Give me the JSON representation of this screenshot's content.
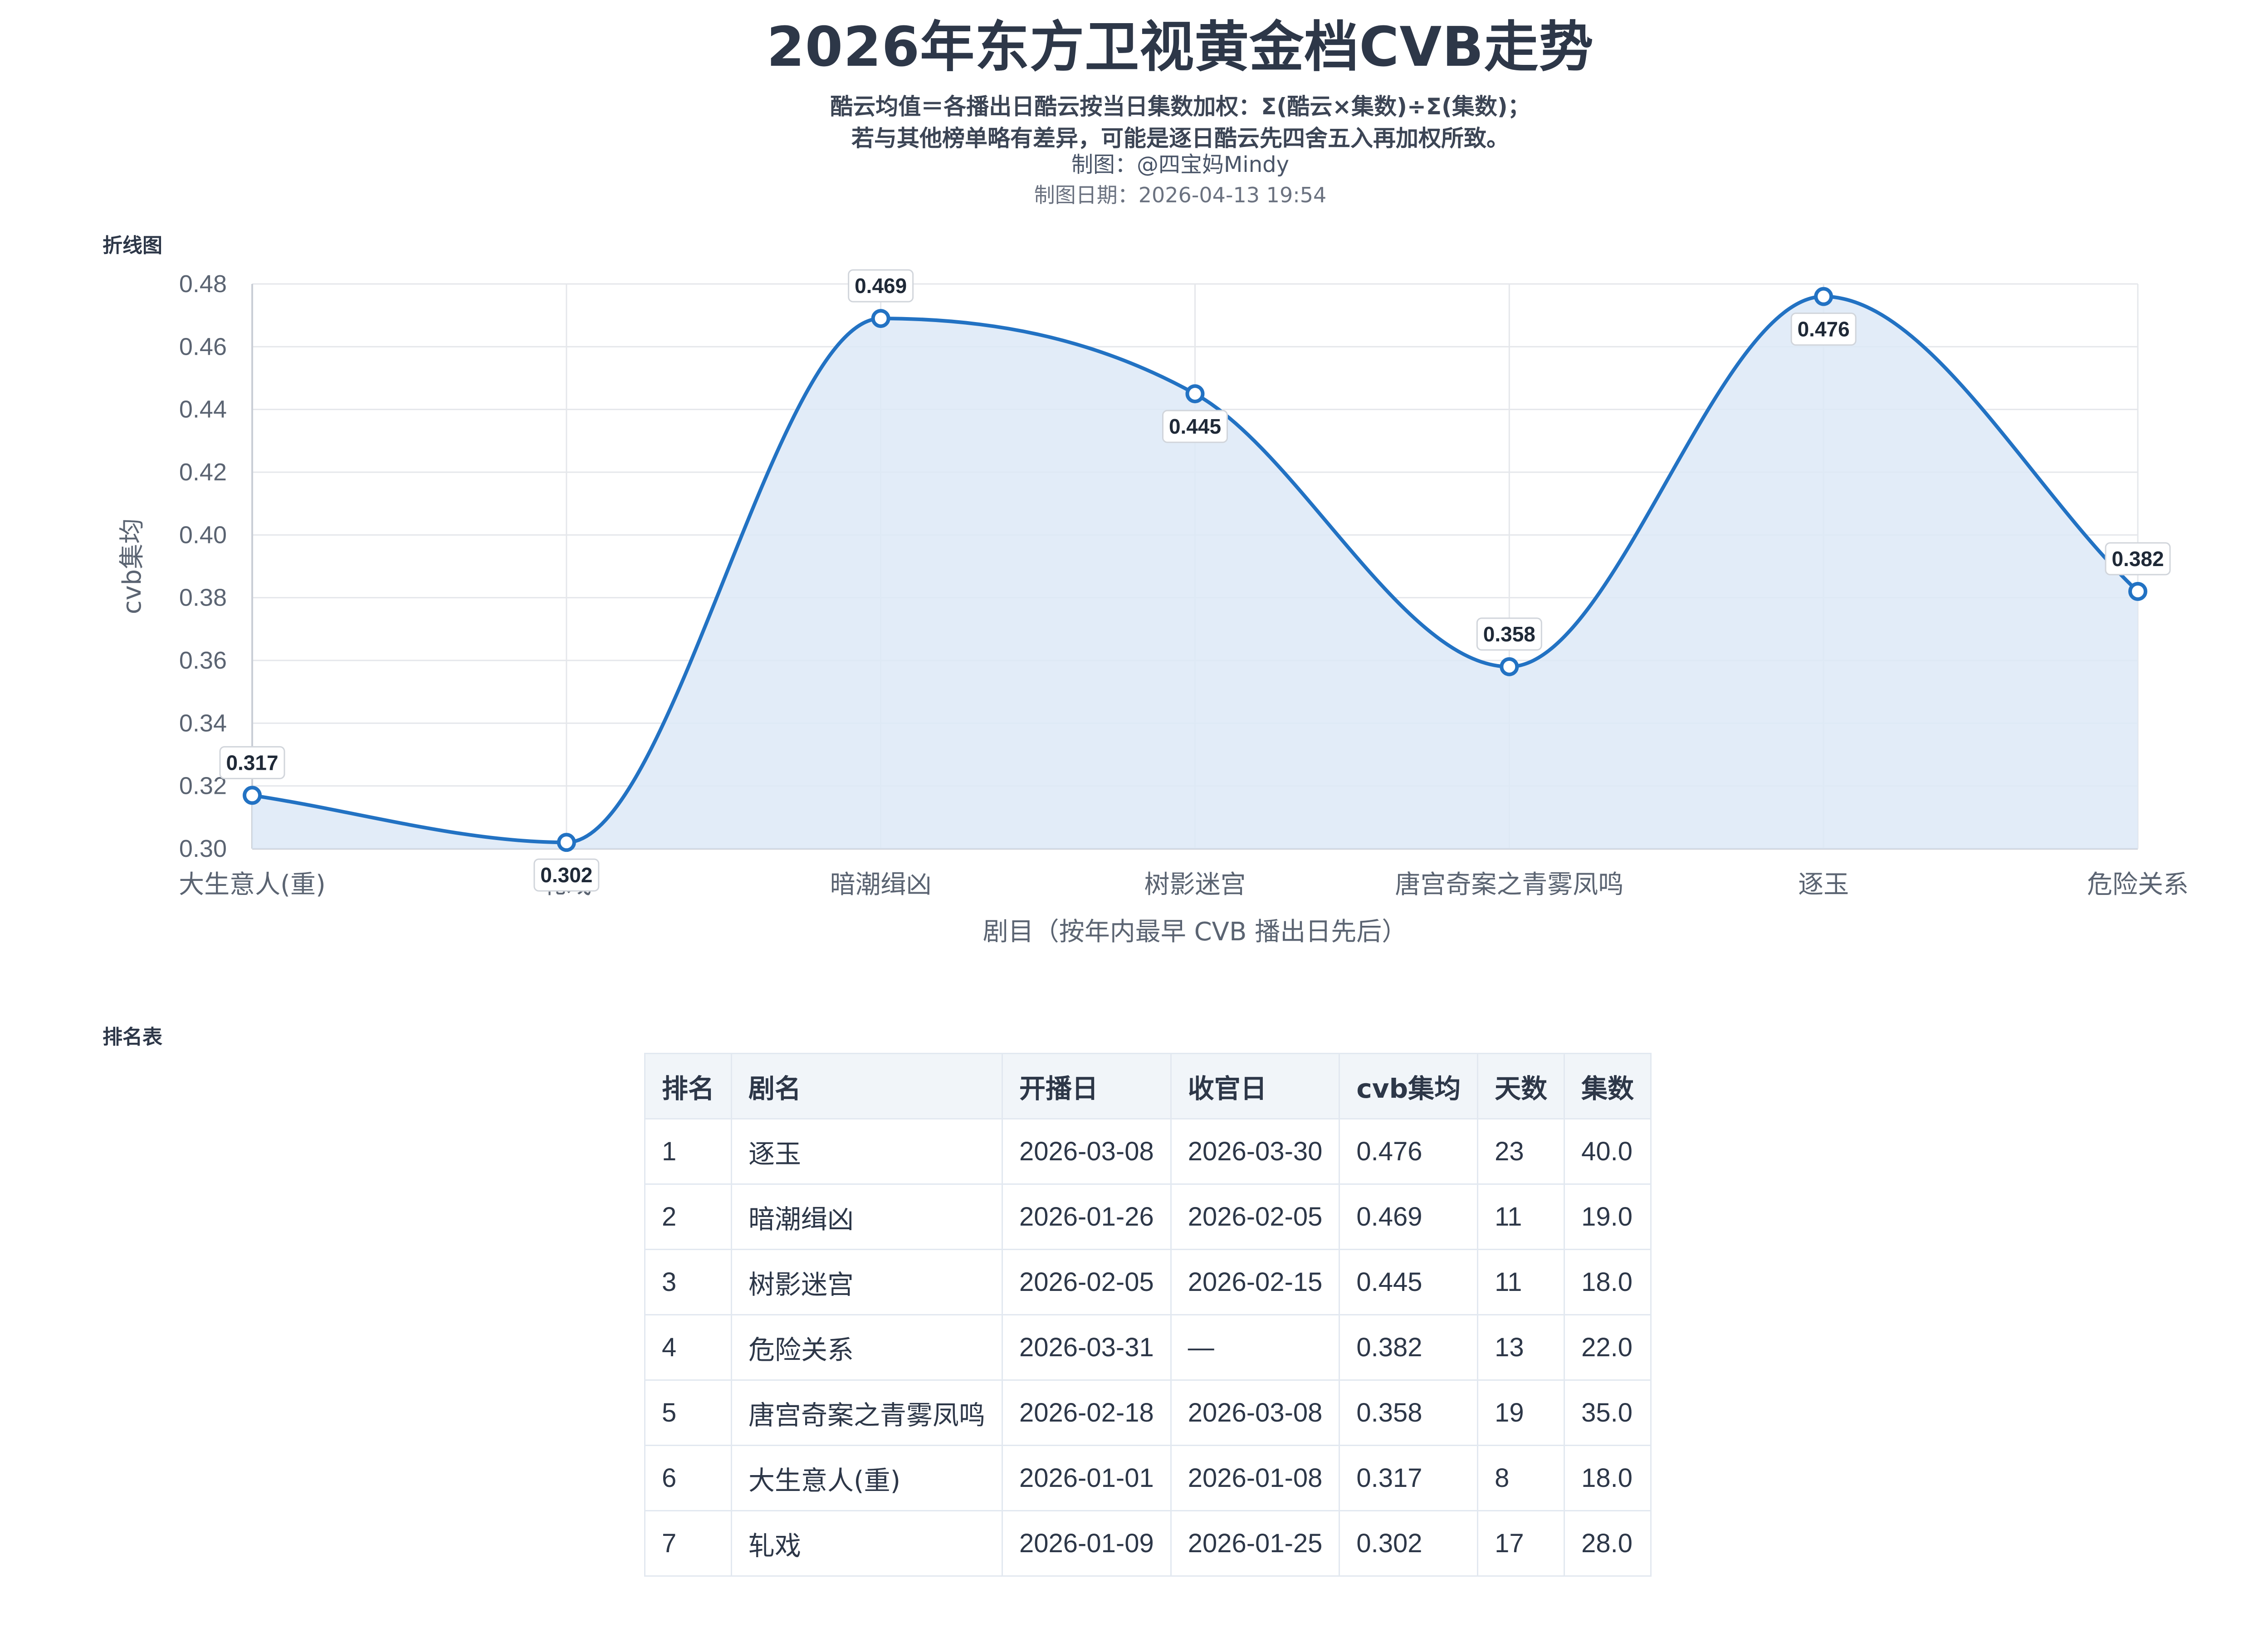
{
  "title": "2026年东方卫视黄金档CVB走势",
  "subtitle": {
    "line1": "酷云均值＝各播出日酷云按当日集数加权：Σ(酷云×集数)÷Σ(集数)；",
    "line2": "若与其他榜单略有差异，可能是逐日酷云先四舍五入再加权所致。"
  },
  "credit": "制图：@四宝妈Mindy",
  "date": "制图日期：2026-04-13 19:54",
  "sections": {
    "chart": "折线图",
    "table": "排名表"
  },
  "chart_data": {
    "type": "line",
    "categories": [
      "大生意人(重)",
      "轧戏",
      "暗潮缉凶",
      "树影迷宫",
      "唐宫奇案之青雾凤鸣",
      "逐玉",
      "危险关系"
    ],
    "values": [
      0.317,
      0.302,
      0.469,
      0.445,
      0.358,
      0.476,
      0.382
    ],
    "data_labels": [
      "0.317",
      "0.302",
      "0.469",
      "0.445",
      "0.358",
      "0.476",
      "0.382"
    ],
    "xlabel": "剧目（按年内最早 CVB 播出日先后）",
    "ylabel": "cvb集均",
    "ylim": [
      0.3,
      0.48
    ],
    "yticks": [
      "0.30",
      "0.32",
      "0.34",
      "0.36",
      "0.38",
      "0.40",
      "0.42",
      "0.44",
      "0.46",
      "0.48"
    ],
    "grid": true,
    "smooth": true,
    "area_fill": true,
    "colors": {
      "line": "#2272c3",
      "fill": "#dde9f7"
    }
  },
  "table": {
    "headers": [
      "排名",
      "剧名",
      "开播日",
      "收官日",
      "cvb集均",
      "天数",
      "集数"
    ],
    "rows": [
      [
        "1",
        "逐玉",
        "2026-03-08",
        "2026-03-30",
        "0.476",
        "23",
        "40.0"
      ],
      [
        "2",
        "暗潮缉凶",
        "2026-01-26",
        "2026-02-05",
        "0.469",
        "11",
        "19.0"
      ],
      [
        "3",
        "树影迷宫",
        "2026-02-05",
        "2026-02-15",
        "0.445",
        "11",
        "18.0"
      ],
      [
        "4",
        "危险关系",
        "2026-03-31",
        "—",
        "0.382",
        "13",
        "22.0"
      ],
      [
        "5",
        "唐宫奇案之青雾凤鸣",
        "2026-02-18",
        "2026-03-08",
        "0.358",
        "19",
        "35.0"
      ],
      [
        "6",
        "大生意人(重)",
        "2026-01-01",
        "2026-01-08",
        "0.317",
        "8",
        "18.0"
      ],
      [
        "7",
        "轧戏",
        "2026-01-09",
        "2026-01-25",
        "0.302",
        "17",
        "28.0"
      ]
    ]
  }
}
